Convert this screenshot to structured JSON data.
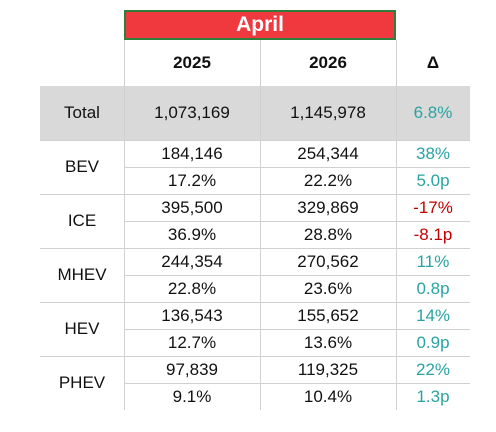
{
  "title": "April",
  "columns": [
    "2025",
    "2026",
    "Δ"
  ],
  "total": {
    "label": "Total",
    "cells": [
      "1,073,169",
      "1,145,978",
      "6.8%"
    ]
  },
  "groups": [
    {
      "label": "BEV",
      "rows": [
        [
          "184,146",
          "254,344",
          "38%"
        ],
        [
          "17.2%",
          "22.2%",
          "5.0p"
        ]
      ]
    },
    {
      "label": "ICE",
      "rows": [
        [
          "395,500",
          "329,869",
          "-17%"
        ],
        [
          "36.9%",
          "28.8%",
          "-8.1p"
        ]
      ]
    },
    {
      "label": "MHEV",
      "rows": [
        [
          "244,354",
          "270,562",
          "11%"
        ],
        [
          "22.8%",
          "23.6%",
          "0.8p"
        ]
      ]
    },
    {
      "label": "HEV",
      "rows": [
        [
          "136,543",
          "155,652",
          "14%"
        ],
        [
          "12.7%",
          "13.6%",
          "0.9p"
        ]
      ]
    },
    {
      "label": "PHEV",
      "rows": [
        [
          "97,839",
          "119,325",
          "22%"
        ],
        [
          "9.1%",
          "10.4%",
          "1.3p"
        ]
      ]
    }
  ]
}
